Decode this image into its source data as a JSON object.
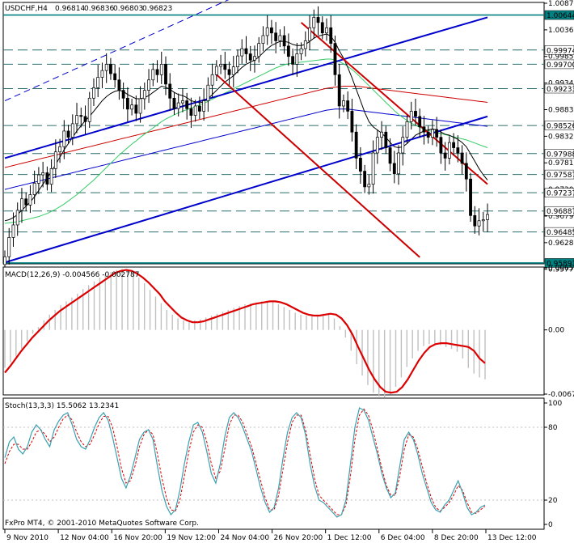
{
  "app": {
    "copyright": "FxPro MT4, © 2001-2010 MetaQuotes Software Corp."
  },
  "chart_data": [
    {
      "type": "candlestick",
      "symbol": "USDCHF,H4",
      "ohlc": [
        "0.96814",
        "0.96836",
        "0.96803",
        "0.96823"
      ],
      "ylim": [
        0.9589,
        1.0087
      ],
      "y_ticks": [
        "1.00870",
        "1.00360",
        "0.99850",
        "0.99340",
        "0.98830",
        "0.98320",
        "0.97810",
        "0.97300",
        "0.96790",
        "0.96280",
        "0.95770"
      ],
      "horizontal_levels": [
        {
          "price": "1.00644",
          "highlight": true
        },
        {
          "price": "0.99974",
          "highlight": false
        },
        {
          "price": "0.99700",
          "highlight": false
        },
        {
          "price": "0.99233",
          "highlight": false
        },
        {
          "price": "0.98526",
          "highlight": false
        },
        {
          "price": "0.97988",
          "highlight": false
        },
        {
          "price": "0.97587",
          "highlight": false
        },
        {
          "price": "0.97237",
          "highlight": false
        },
        {
          "price": "0.96887",
          "highlight": false
        },
        {
          "price": "0.96485",
          "highlight": false
        },
        {
          "price": "0.95891",
          "highlight": true
        }
      ],
      "close_prices": [
        0.9601,
        0.9638,
        0.9662,
        0.969,
        0.9712,
        0.97,
        0.972,
        0.9742,
        0.9758,
        0.9762,
        0.974,
        0.977,
        0.9802,
        0.9812,
        0.9842,
        0.983,
        0.9856,
        0.9872,
        0.987,
        0.986,
        0.9905,
        0.9925,
        0.9945,
        0.9958,
        0.997,
        0.9952,
        0.994,
        0.992,
        0.9905,
        0.9884,
        0.9892,
        0.9876,
        0.9904,
        0.992,
        0.994,
        0.996,
        0.995,
        0.997,
        0.9932,
        0.9905,
        0.9885,
        0.9896,
        0.99,
        0.9885,
        0.9872,
        0.989,
        0.988,
        0.99,
        0.993,
        0.995,
        0.9966,
        0.997,
        0.996,
        0.995,
        0.9965,
        0.9986,
        1.0,
        0.999,
        0.9978,
        0.9985,
        1.001,
        1.0025,
        1.004,
        1.003,
        1.0015,
        1.0025,
        1.0005,
        0.9985,
        0.997,
        0.999,
        1.0,
        1.0015,
        1.004,
        1.006,
        1.005,
        1.003,
        1.004,
        1.001,
        0.995,
        0.989,
        0.99,
        0.988,
        0.984,
        0.979,
        0.9765,
        0.9735,
        0.974,
        0.98,
        0.983,
        0.984,
        0.981,
        0.978,
        0.976,
        0.98,
        0.983,
        0.986,
        0.988,
        0.987,
        0.985,
        0.984,
        0.983,
        0.9845,
        0.983,
        0.98,
        0.979,
        0.982,
        0.981,
        0.98,
        0.978,
        0.975,
        0.968,
        0.966,
        0.967,
        0.9672,
        0.9682
      ],
      "sma_fast": [
        0.967,
        0.9672,
        0.9676,
        0.9682,
        0.969,
        0.9698,
        0.9706,
        0.9716,
        0.9728,
        0.974,
        0.9752,
        0.9764,
        0.9778,
        0.9792,
        0.9806,
        0.9818,
        0.983,
        0.9842,
        0.9852,
        0.9862,
        0.987,
        0.988,
        0.989,
        0.99,
        0.9908,
        0.9914,
        0.9918,
        0.992,
        0.9918,
        0.9912,
        0.9908,
        0.9904,
        0.9904,
        0.9906,
        0.991,
        0.9916,
        0.9922,
        0.9928,
        0.9926,
        0.9922,
        0.9916,
        0.9912,
        0.991,
        0.9906,
        0.99,
        0.9898,
        0.9896,
        0.9898,
        0.9904,
        0.9912,
        0.992,
        0.9928,
        0.9936,
        0.9942,
        0.9948,
        0.9956,
        0.9964,
        0.997,
        0.9974,
        0.9978,
        0.9984,
        0.9992,
        1.0,
        1.0006,
        1.001,
        1.0014,
        1.0014,
        1.0012,
        1.0008,
        1.0006,
        1.0006,
        1.0008,
        1.0014,
        1.002,
        1.0024,
        1.0026,
        1.0028,
        1.0024,
        1.0012,
        0.9996,
        0.9982,
        0.9964,
        0.9944,
        0.9922,
        0.99,
        0.9878,
        0.986,
        0.985,
        0.9844,
        0.9838,
        0.983,
        0.982,
        0.9812,
        0.981,
        0.9812,
        0.9818,
        0.9826,
        0.9834,
        0.9838,
        0.9842,
        0.9844,
        0.9846,
        0.9844,
        0.984,
        0.9836,
        0.9834,
        0.983,
        0.9826,
        0.982,
        0.9812,
        0.9798,
        0.9784,
        0.977,
        0.9758,
        0.9748
      ],
      "sma_mid": [
        0.9665,
        0.9666,
        0.9667,
        0.9668,
        0.967,
        0.9672,
        0.9674,
        0.9676,
        0.9678,
        0.9681,
        0.9684,
        0.9688,
        0.9692,
        0.9697,
        0.9702,
        0.9708,
        0.9714,
        0.972,
        0.9727,
        0.9734,
        0.9741,
        0.9748,
        0.9756,
        0.9764,
        0.9772,
        0.978,
        0.9788,
        0.9796,
        0.9803,
        0.981,
        0.9817,
        0.9823,
        0.983,
        0.9836,
        0.9842,
        0.9848,
        0.9854,
        0.986,
        0.9865,
        0.9869,
        0.9873,
        0.9877,
        0.988,
        0.9883,
        0.9886,
        0.9889,
        0.9892,
        0.9895,
        0.9899,
        0.9903,
        0.9907,
        0.9911,
        0.9915,
        0.9919,
        0.9923,
        0.9927,
        0.9931,
        0.9935,
        0.9939,
        0.9943,
        0.9947,
        0.9951,
        0.9955,
        0.9959,
        0.9963,
        0.9966,
        0.9969,
        0.9971,
        0.9972,
        0.9973,
        0.9974,
        0.9975,
        0.9976,
        0.9977,
        0.9978,
        0.9979,
        0.998,
        0.998,
        0.9978,
        0.9975,
        0.9971,
        0.9966,
        0.996,
        0.9953,
        0.9945,
        0.9937,
        0.9929,
        0.9921,
        0.9913,
        0.9905,
        0.9897,
        0.9889,
        0.9881,
        0.9874,
        0.9868,
        0.9862,
        0.9857,
        0.9853,
        0.9849,
        0.9846,
        0.9843,
        0.9841,
        0.9839,
        0.9837,
        0.9835,
        0.9833,
        0.9831,
        0.9829,
        0.9827,
        0.9825,
        0.9822,
        0.9819,
        0.9816,
        0.9813,
        0.981
      ],
      "sma_slow": [
        0.973,
        0.9732,
        0.9734,
        0.9736,
        0.9738,
        0.974,
        0.9742,
        0.9744,
        0.9746,
        0.9748,
        0.975,
        0.9752,
        0.9754,
        0.9756,
        0.9758,
        0.976,
        0.9762,
        0.9764,
        0.9766,
        0.9768,
        0.977,
        0.9772,
        0.9774,
        0.9776,
        0.9778,
        0.978,
        0.9782,
        0.9784,
        0.9786,
        0.9788,
        0.979,
        0.9792,
        0.9794,
        0.9796,
        0.9798,
        0.98,
        0.9802,
        0.9804,
        0.9806,
        0.9808,
        0.981,
        0.9812,
        0.9814,
        0.9816,
        0.9818,
        0.982,
        0.9822,
        0.9824,
        0.9826,
        0.9828,
        0.983,
        0.9832,
        0.9834,
        0.9836,
        0.9838,
        0.984,
        0.9842,
        0.9844,
        0.9846,
        0.9848,
        0.985,
        0.9852,
        0.9854,
        0.9856,
        0.9858,
        0.986,
        0.9862,
        0.9864,
        0.9866,
        0.9868,
        0.987,
        0.9872,
        0.9874,
        0.9876,
        0.9878,
        0.988,
        0.9882,
        0.9883,
        0.9884,
        0.9884,
        0.9884,
        0.9884,
        0.9883,
        0.9882,
        0.9881,
        0.988,
        0.9879,
        0.9878,
        0.9877,
        0.9876,
        0.9875,
        0.9874,
        0.9873,
        0.9872,
        0.9871,
        0.987,
        0.9869,
        0.9868,
        0.9867,
        0.9866,
        0.9865,
        0.9864,
        0.9863,
        0.9862,
        0.9861,
        0.986,
        0.9859,
        0.9858,
        0.9857,
        0.9856,
        0.9855,
        0.9854,
        0.9853,
        0.9852,
        0.9851
      ],
      "sma_200": [
        0.9772,
        0.9774,
        0.9776,
        0.9778,
        0.978,
        0.9782,
        0.9784,
        0.9786,
        0.9788,
        0.979,
        0.9792,
        0.9794,
        0.9796,
        0.9798,
        0.98,
        0.9802,
        0.9804,
        0.9806,
        0.9808,
        0.981,
        0.9812,
        0.9814,
        0.9816,
        0.9818,
        0.982,
        0.9822,
        0.9824,
        0.9826,
        0.9828,
        0.983,
        0.9832,
        0.9834,
        0.9836,
        0.9838,
        0.984,
        0.9842,
        0.9844,
        0.9846,
        0.9848,
        0.985,
        0.9852,
        0.9854,
        0.9856,
        0.9858,
        0.986,
        0.9862,
        0.9864,
        0.9866,
        0.9868,
        0.987,
        0.9872,
        0.9874,
        0.9876,
        0.9878,
        0.988,
        0.9882,
        0.9884,
        0.9886,
        0.9888,
        0.989,
        0.9892,
        0.9894,
        0.9896,
        0.9898,
        0.99,
        0.9902,
        0.9904,
        0.9906,
        0.9908,
        0.991,
        0.9912,
        0.9914,
        0.9916,
        0.9918,
        0.992,
        0.9922,
        0.9924,
        0.9925,
        0.9926,
        0.9927,
        0.9928,
        0.9928,
        0.9928,
        0.9928,
        0.9927,
        0.9926,
        0.9925,
        0.9924,
        0.9923,
        0.9922,
        0.9921,
        0.992,
        0.9919,
        0.9918,
        0.9917,
        0.9916,
        0.9915,
        0.9914,
        0.9913,
        0.9912,
        0.9911,
        0.991,
        0.9909,
        0.9908,
        0.9907,
        0.9906,
        0.9905,
        0.9904,
        0.9903,
        0.9902,
        0.9901,
        0.99,
        0.9899,
        0.9898,
        0.9897
      ],
      "channel_lines": [
        {
          "color": "#0000cc",
          "from": [
            0,
            0.979
          ],
          "to": [
            114,
            1.006
          ]
        },
        {
          "color": "#0000cc",
          "from": [
            0,
            0.959
          ],
          "to": [
            114,
            0.987
          ]
        },
        {
          "color": "#0000cc",
          "from": [
            0,
            0.99
          ],
          "to": [
            60,
            1.012
          ],
          "dashed": true
        },
        {
          "color": "#cc0000",
          "from": [
            70,
            1.005
          ],
          "to": [
            114,
            0.974
          ]
        },
        {
          "color": "#cc0000",
          "from": [
            50,
            0.995
          ],
          "to": [
            98,
            0.96
          ]
        }
      ],
      "x_ticks": [
        "9 Nov 2010",
        "12 Nov 04:00",
        "16 Nov 20:00",
        "19 Nov 12:00",
        "24 Nov 04:00",
        "26 Nov 20:00",
        "1 Dec 12:00",
        "6 Dec 04:00",
        "8 Dec 20:00",
        "13 Dec 12:00"
      ],
      "colors": {
        "bull_body": "#ffffff",
        "candle_border": "#000000",
        "sma_fast": "#000000",
        "sma_mid": "#33cc66",
        "sma_slow": "#0000cc",
        "sma_200": "#cc0000",
        "highlight_bg": "#008080"
      }
    },
    {
      "type": "line",
      "title": "MACD(12,26,9) -0.004566 -0.002787",
      "ylim": [
        -0.00675,
        0.00652
      ],
      "y_ticks": [
        "0.00652",
        "0.00",
        "-0.00675"
      ],
      "signal_values": [
        -0.0045,
        -0.0038,
        -0.003,
        -0.0022,
        -0.0015,
        -0.0008,
        -0.0002,
        0.0004,
        0.001,
        0.0015,
        0.002,
        0.0024,
        0.0028,
        0.0032,
        0.0036,
        0.004,
        0.0044,
        0.0048,
        0.0052,
        0.0056,
        0.006,
        0.0062,
        0.0063,
        0.0062,
        0.0059,
        0.0055,
        0.005,
        0.0044,
        0.0038,
        0.003,
        0.0024,
        0.0018,
        0.0013,
        0.001,
        0.0008,
        0.0008,
        0.0009,
        0.0011,
        0.0013,
        0.0015,
        0.0017,
        0.0019,
        0.0021,
        0.0023,
        0.0025,
        0.0027,
        0.0028,
        0.0029,
        0.003,
        0.003,
        0.0029,
        0.0027,
        0.0024,
        0.0021,
        0.0018,
        0.0016,
        0.0015,
        0.0015,
        0.0016,
        0.0017,
        0.0016,
        0.0012,
        0.0005,
        -0.0005,
        -0.0018,
        -0.003,
        -0.0042,
        -0.0052,
        -0.006,
        -0.0065,
        -0.0066,
        -0.0065,
        -0.006,
        -0.0052,
        -0.0042,
        -0.0032,
        -0.0024,
        -0.0018,
        -0.0015,
        -0.0014,
        -0.0014,
        -0.0015,
        -0.0016,
        -0.0017,
        -0.0018,
        -0.0022,
        -0.003,
        -0.0035
      ],
      "histogram": [
        -0.004,
        -0.0034,
        -0.0028,
        -0.002,
        -0.0012,
        -0.0004,
        0.0003,
        0.001,
        0.0016,
        0.0021,
        0.0026,
        0.003,
        0.0034,
        0.0038,
        0.0043,
        0.0047,
        0.0051,
        0.0055,
        0.0058,
        0.0061,
        0.0063,
        0.0064,
        0.0063,
        0.006,
        0.0055,
        0.0049,
        0.0042,
        0.0035,
        0.0028,
        0.0021,
        0.0016,
        0.0012,
        0.001,
        0.0009,
        0.001,
        0.0011,
        0.0013,
        0.0015,
        0.0017,
        0.0019,
        0.0021,
        0.0023,
        0.0025,
        0.0027,
        0.0028,
        0.0029,
        0.003,
        0.003,
        0.0029,
        0.0027,
        0.0024,
        0.0021,
        0.0018,
        0.0016,
        0.0015,
        0.0015,
        0.0016,
        0.0017,
        0.0016,
        0.0012,
        0.0004,
        -0.0008,
        -0.0022,
        -0.0036,
        -0.0048,
        -0.0058,
        -0.0066,
        -0.007,
        -0.0071,
        -0.0068,
        -0.006,
        -0.005,
        -0.0039,
        -0.003,
        -0.0022,
        -0.0017,
        -0.0015,
        -0.0015,
        -0.0016,
        -0.0018,
        -0.002,
        -0.0023,
        -0.003,
        -0.004,
        -0.0046,
        -0.005,
        -0.0052
      ],
      "colors": {
        "signal": "#dd0000",
        "histogram": "#c0c0c0"
      }
    },
    {
      "type": "line",
      "title": "Stoch(13,3,3) 15.5062 13.2341",
      "ylim": [
        0,
        100
      ],
      "y_ticks": [
        "100",
        "80",
        "20",
        "0"
      ],
      "main_values": [
        55,
        68,
        72,
        62,
        58,
        64,
        76,
        82,
        78,
        70,
        64,
        78,
        85,
        90,
        92,
        82,
        70,
        64,
        62,
        70,
        80,
        88,
        92,
        86,
        72,
        55,
        38,
        30,
        40,
        55,
        70,
        76,
        78,
        70,
        48,
        28,
        15,
        8,
        12,
        28,
        50,
        68,
        82,
        84,
        76,
        60,
        42,
        34,
        50,
        72,
        88,
        92,
        88,
        80,
        70,
        60,
        45,
        30,
        18,
        10,
        14,
        30,
        55,
        76,
        88,
        92,
        88,
        74,
        50,
        32,
        20,
        18,
        14,
        10,
        6,
        8,
        20,
        50,
        80,
        96,
        94,
        86,
        72,
        58,
        42,
        30,
        22,
        26,
        48,
        70,
        76,
        70,
        58,
        42,
        30,
        18,
        12,
        10,
        16,
        20,
        28,
        36,
        26,
        14,
        8,
        10,
        14,
        16
      ],
      "signal_values": [
        50,
        60,
        66,
        66,
        62,
        62,
        68,
        76,
        78,
        74,
        68,
        72,
        80,
        87,
        90,
        86,
        76,
        68,
        64,
        66,
        74,
        83,
        89,
        89,
        80,
        64,
        46,
        34,
        36,
        48,
        64,
        74,
        78,
        74,
        58,
        38,
        22,
        12,
        11,
        20,
        40,
        60,
        76,
        82,
        80,
        68,
        50,
        38,
        44,
        62,
        82,
        90,
        90,
        84,
        74,
        64,
        50,
        36,
        22,
        12,
        12,
        24,
        46,
        68,
        84,
        90,
        90,
        78,
        58,
        38,
        24,
        20,
        16,
        12,
        8,
        8,
        16,
        40,
        70,
        90,
        95,
        90,
        78,
        62,
        46,
        32,
        24,
        24,
        40,
        62,
        74,
        72,
        62,
        48,
        34,
        22,
        14,
        11,
        14,
        18,
        24,
        32,
        28,
        18,
        10,
        9,
        12,
        15
      ],
      "colors": {
        "main": "#3aa0b0",
        "signal": "#dd0000"
      }
    }
  ]
}
